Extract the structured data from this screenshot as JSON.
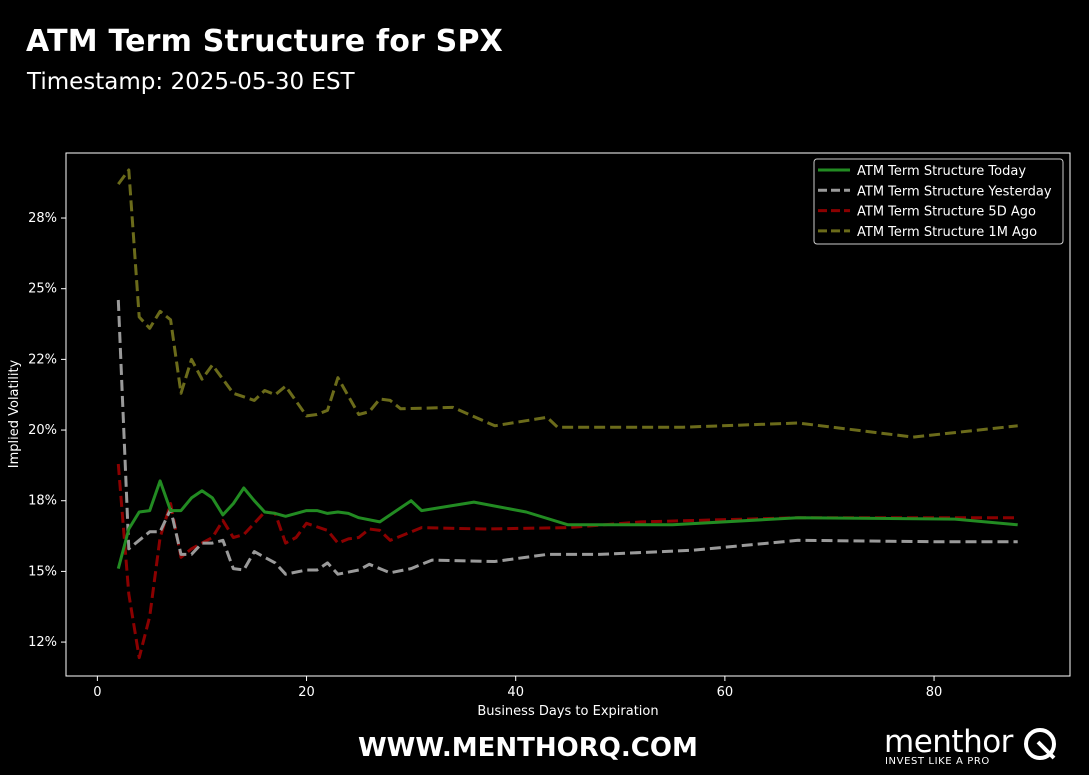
{
  "header": {
    "title": "ATM Term Structure for SPX",
    "subtitle": "Timestamp: 2025-05-30 EST"
  },
  "footer": {
    "url": "WWW.MENTHORQ.COM",
    "brand_name": "menthor",
    "brand_tagline": "INVEST LIKE A PRO"
  },
  "chart_data": {
    "type": "line",
    "xlabel": "Business Days to Expiration",
    "ylabel": "Implied Volatility",
    "xlim": [
      -3,
      93
    ],
    "ylim": [
      0.113,
      0.298
    ],
    "xticks": [
      0,
      20,
      40,
      60,
      80
    ],
    "xtick_labels": [
      "0",
      "20",
      "40",
      "60",
      "80"
    ],
    "yticks": [
      0.125,
      0.15,
      0.175,
      0.2,
      0.225,
      0.25,
      0.275
    ],
    "ytick_labels": [
      "12%",
      "15%",
      "18%",
      "20%",
      "22%",
      "25%",
      "28%"
    ],
    "legend_position": "top-right",
    "series": [
      {
        "name": "ATM Term Structure Today",
        "color": "#228b22",
        "dash": "solid",
        "points": [
          [
            2,
            0.151
          ],
          [
            3,
            0.165
          ],
          [
            4,
            0.171
          ],
          [
            5,
            0.1715
          ],
          [
            6,
            0.182
          ],
          [
            7,
            0.1715
          ],
          [
            8,
            0.1715
          ],
          [
            9,
            0.176
          ],
          [
            10,
            0.1785
          ],
          [
            11,
            0.176
          ],
          [
            12,
            0.17
          ],
          [
            13,
            0.174
          ],
          [
            14,
            0.1795
          ],
          [
            15,
            0.175
          ],
          [
            16,
            0.171
          ],
          [
            17,
            0.1705
          ],
          [
            18,
            0.1695
          ],
          [
            20,
            0.1715
          ],
          [
            21,
            0.1715
          ],
          [
            22,
            0.1705
          ],
          [
            23,
            0.171
          ],
          [
            24,
            0.1705
          ],
          [
            25,
            0.169
          ],
          [
            27,
            0.1675
          ],
          [
            30,
            0.175
          ],
          [
            31,
            0.1715
          ],
          [
            36,
            0.1745
          ],
          [
            41,
            0.171
          ],
          [
            45,
            0.1665
          ],
          [
            55,
            0.1665
          ],
          [
            67,
            0.169
          ],
          [
            82,
            0.1685
          ],
          [
            88,
            0.1665
          ]
        ]
      },
      {
        "name": "ATM Term Structure Yesterday",
        "color": "#9a9a9a",
        "dash": "dashed",
        "points": [
          [
            2,
            0.246
          ],
          [
            3,
            0.158
          ],
          [
            4,
            0.161
          ],
          [
            5,
            0.164
          ],
          [
            6,
            0.164
          ],
          [
            7,
            0.172
          ],
          [
            8,
            0.156
          ],
          [
            9,
            0.156
          ],
          [
            10,
            0.16
          ],
          [
            11,
            0.16
          ],
          [
            12,
            0.161
          ],
          [
            13,
            0.151
          ],
          [
            14,
            0.1505
          ],
          [
            15,
            0.157
          ],
          [
            16,
            0.155
          ],
          [
            17,
            0.153
          ],
          [
            18,
            0.149
          ],
          [
            20,
            0.1505
          ],
          [
            21,
            0.1505
          ],
          [
            22,
            0.153
          ],
          [
            23,
            0.149
          ],
          [
            25,
            0.1505
          ],
          [
            26,
            0.1525
          ],
          [
            28,
            0.1495
          ],
          [
            30,
            0.151
          ],
          [
            32,
            0.154
          ],
          [
            38,
            0.1535
          ],
          [
            43,
            0.156
          ],
          [
            48,
            0.156
          ],
          [
            57,
            0.1575
          ],
          [
            67,
            0.161
          ],
          [
            80,
            0.1605
          ],
          [
            88,
            0.1605
          ]
        ]
      },
      {
        "name": "ATM Term Structure 5D Ago",
        "color": "#8b0000",
        "dash": "dashed",
        "points": [
          [
            2,
            0.188
          ],
          [
            3,
            0.142
          ],
          [
            4,
            0.1195
          ],
          [
            5,
            0.134
          ],
          [
            6,
            0.162
          ],
          [
            7,
            0.174
          ],
          [
            8,
            0.155
          ],
          [
            9,
            0.158
          ],
          [
            10,
            0.16
          ],
          [
            11,
            0.162
          ],
          [
            12,
            0.168
          ],
          [
            13,
            0.162
          ],
          [
            14,
            0.163
          ],
          [
            15,
            0.167
          ],
          [
            16,
            0.171
          ],
          [
            17,
            0.1705
          ],
          [
            18,
            0.16
          ],
          [
            19,
            0.162
          ],
          [
            20,
            0.167
          ],
          [
            22,
            0.1645
          ],
          [
            23,
            0.16
          ],
          [
            24,
            0.1615
          ],
          [
            25,
            0.162
          ],
          [
            26,
            0.165
          ],
          [
            27,
            0.1645
          ],
          [
            28,
            0.161
          ],
          [
            29,
            0.1625
          ],
          [
            31,
            0.1655
          ],
          [
            37,
            0.165
          ],
          [
            45,
            0.1655
          ],
          [
            52,
            0.1675
          ],
          [
            67,
            0.169
          ],
          [
            88,
            0.169
          ]
        ]
      },
      {
        "name": "ATM Term Structure 1M Ago",
        "color": "#6b6b1a",
        "dash": "dashed",
        "points": [
          [
            2,
            0.287
          ],
          [
            3,
            0.292
          ],
          [
            4,
            0.24
          ],
          [
            5,
            0.236
          ],
          [
            6,
            0.242
          ],
          [
            7,
            0.239
          ],
          [
            8,
            0.213
          ],
          [
            9,
            0.225
          ],
          [
            10,
            0.218
          ],
          [
            11,
            0.223
          ],
          [
            12,
            0.218
          ],
          [
            13,
            0.213
          ],
          [
            15,
            0.2105
          ],
          [
            16,
            0.214
          ],
          [
            17,
            0.2125
          ],
          [
            18,
            0.2155
          ],
          [
            20,
            0.205
          ],
          [
            21,
            0.2055
          ],
          [
            22,
            0.207
          ],
          [
            23,
            0.2185
          ],
          [
            25,
            0.2055
          ],
          [
            26,
            0.2065
          ],
          [
            27,
            0.211
          ],
          [
            28,
            0.2105
          ],
          [
            29,
            0.2075
          ],
          [
            34,
            0.208
          ],
          [
            38,
            0.2015
          ],
          [
            43,
            0.2045
          ],
          [
            44,
            0.201
          ],
          [
            56,
            0.201
          ],
          [
            67,
            0.2025
          ],
          [
            78,
            0.1975
          ],
          [
            88,
            0.2015
          ]
        ]
      }
    ]
  }
}
